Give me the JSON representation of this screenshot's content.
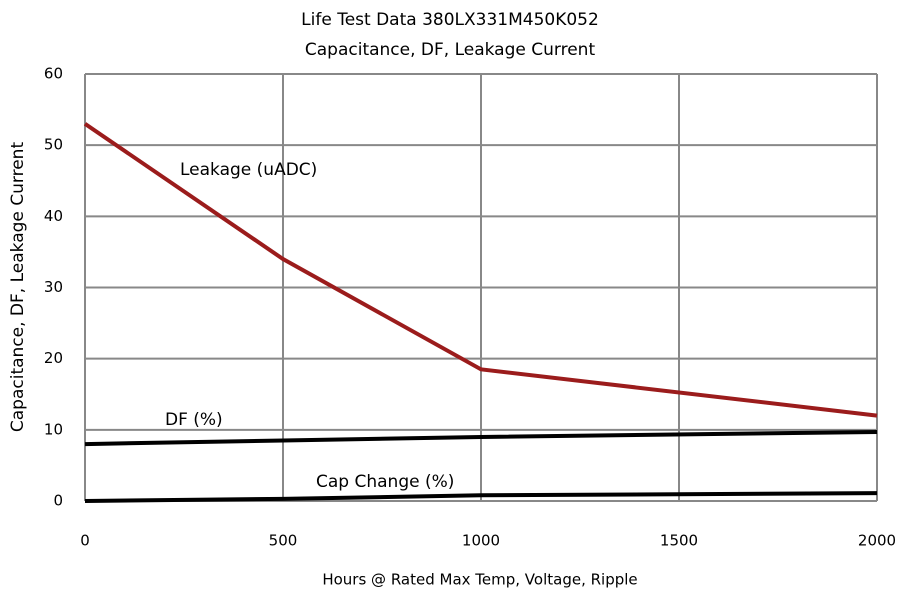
{
  "chart_data": {
    "type": "line",
    "title": "Life Test Data 380LX331M450K052",
    "subtitle": "Capacitance, DF, Leakage Current",
    "x_label": "Hours @ Rated Max Temp, Voltage, Ripple",
    "y_label": "Capacitance, DF, Leakage Current",
    "x": [
      0,
      500,
      1000,
      2000
    ],
    "series": [
      {
        "name": "Leakage (uADC)",
        "color": "#9b1c1c",
        "values": [
          53,
          34,
          18.5,
          12
        ]
      },
      {
        "name": "DF (%)",
        "color": "#000000",
        "values": [
          8,
          8.5,
          9,
          9.7
        ]
      },
      {
        "name": "Cap Change (%)",
        "color": "#000000",
        "values": [
          0,
          0.3,
          0.8,
          1.1
        ]
      }
    ],
    "xlim": [
      0,
      2000
    ],
    "xticks": [
      0,
      500,
      1000,
      1500,
      2000
    ],
    "ylim": [
      0,
      60
    ],
    "yticks": [
      0,
      10,
      20,
      30,
      40,
      50,
      60
    ],
    "grid": true
  }
}
